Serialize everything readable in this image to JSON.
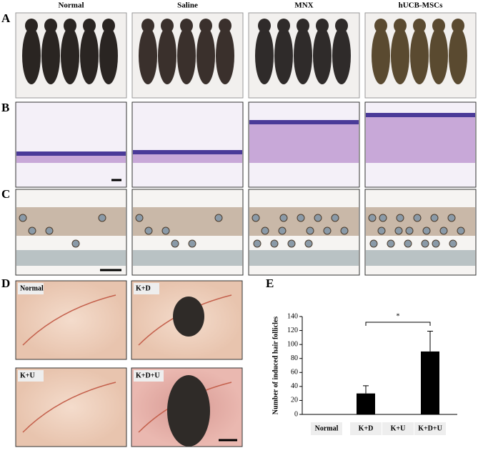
{
  "column_headers": [
    "Normal",
    "Saline",
    "MNX",
    "hUCB-MSCs"
  ],
  "panel_labels": [
    "A",
    "B",
    "C",
    "D",
    "E"
  ],
  "panel_d_labels": [
    "Normal",
    "K+D",
    "K+U",
    "K+D+U"
  ],
  "chart_data": {
    "type": "bar",
    "y_label": "Number of induced hair follicles",
    "categories": [
      "Normal",
      "K+D",
      "K+U",
      "K+D+U"
    ],
    "values": [
      0,
      30,
      0,
      90
    ],
    "errors": [
      0,
      11,
      0,
      29
    ],
    "color": "#000000",
    "ylim": [
      0,
      140
    ],
    "yticks": [
      0,
      20,
      40,
      60,
      80,
      100,
      120,
      140
    ],
    "annotations": [
      {
        "text": "*",
        "from": 1,
        "to": 3
      }
    ]
  }
}
